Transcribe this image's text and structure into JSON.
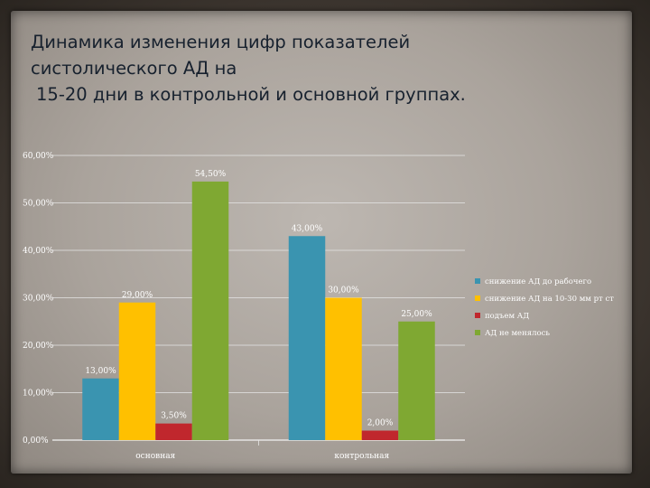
{
  "slide": {
    "title_line1": "Динамика изменения цифр показателей",
    "title_line2": "систолического АД на",
    "title_line3": "15-20  дни в контрольной и основной группах."
  },
  "chart_data": {
    "type": "bar",
    "categories": [
      "основная",
      "контрольная"
    ],
    "series": [
      {
        "name": "снижение АД до рабочего",
        "color": "#3a94b0",
        "values": [
          13.0,
          43.0
        ],
        "labels": [
          "13,00%",
          "43,00%"
        ]
      },
      {
        "name": "снижение АД на 10-30 мм рт ст",
        "color": "#ffc000",
        "values": [
          29.0,
          30.0
        ],
        "labels": [
          "29,00%",
          "30,00%"
        ]
      },
      {
        "name": "подъем АД",
        "color": "#c0272d",
        "values": [
          3.5,
          2.0
        ],
        "labels": [
          "3,50%",
          "2,00%"
        ]
      },
      {
        "name": "АД не менялось",
        "color": "#7fa832",
        "values": [
          54.5,
          25.0
        ],
        "labels": [
          "54,50%",
          "25,00%"
        ]
      }
    ],
    "y_ticks": [
      "0,00%",
      "10,00%",
      "20,00%",
      "30,00%",
      "40,00%",
      "50,00%",
      "60,00%"
    ],
    "ylim": [
      0,
      60
    ],
    "grid": true,
    "legend": "right"
  }
}
